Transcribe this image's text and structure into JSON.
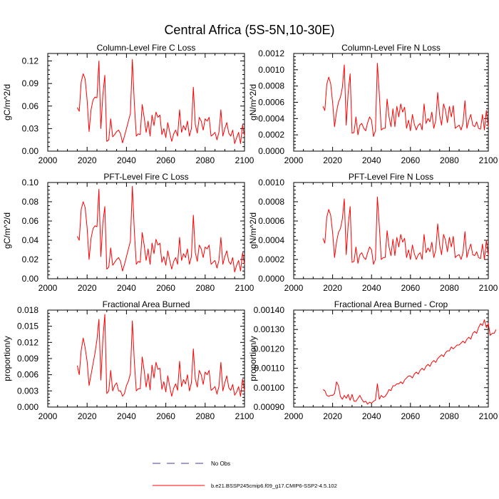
{
  "figure": {
    "title": "Central Africa (5S-5N,10-30E)"
  },
  "legend": [
    {
      "label": "No Obs",
      "color": "#4b3a9e",
      "dash": "dashed"
    },
    {
      "label": "b.e21.BSSP245cmip6.f09_g17.CMIP6-SSP2-4.5.102",
      "color": "#ff0000",
      "dash": "solid"
    }
  ],
  "chart_data": [
    {
      "type": "line",
      "title": "Column-Level Fire C Loss",
      "ylabel": "gC/m^2/d",
      "xlim": [
        2000,
        2100
      ],
      "ylim": [
        0,
        0.13
      ],
      "xticks": [
        "2000",
        "2020",
        "2040",
        "2060",
        "2080",
        "2100"
      ],
      "yticks": [
        [
          "0.00",
          0
        ],
        [
          "0.03",
          0.03
        ],
        [
          "0.06",
          0.06
        ],
        [
          "0.09",
          0.09
        ],
        [
          "0.12",
          0.12
        ]
      ],
      "color": "#ff0000",
      "series": [
        {
          "x_start": 2015,
          "values": [
            0.058,
            0.053,
            0.092,
            0.103,
            0.096,
            0.068,
            0.026,
            0.055,
            0.068,
            0.072,
            0.071,
            0.12,
            0.03,
            0.075,
            0.101,
            0.013,
            0.015,
            0.043,
            0.019,
            0.022,
            0.026,
            0.028,
            0.023,
            0.011,
            0.02,
            0.03,
            0.04,
            0.05,
            0.122,
            0.064,
            0.02,
            0.023,
            0.022,
            0.062,
            0.045,
            0.025,
            0.04,
            0.02,
            0.048,
            0.034,
            0.052,
            0.045,
            0.048,
            0.022,
            0.03,
            0.018,
            0.038,
            0.025,
            0.013,
            0.023,
            0.028,
            0.02,
            0.055,
            0.025,
            0.034,
            0.028,
            0.04,
            0.02,
            0.03,
            0.085,
            0.035,
            0.024,
            0.045,
            0.04,
            0.028,
            0.043,
            0.04,
            0.045,
            0.02,
            0.022,
            0.025,
            0.015,
            0.025,
            0.055,
            0.02,
            0.03,
            0.038,
            0.024,
            0.02,
            0.028,
            0.01,
            0.018,
            0.025,
            0.01,
            0.035,
            0.02
          ]
        }
      ]
    },
    {
      "type": "line",
      "title": "Column-Level Fire N Loss",
      "ylabel": "gN/m^2/d",
      "xlim": [
        2000,
        2100
      ],
      "ylim": [
        0,
        0.0012
      ],
      "xticks": [
        "2000",
        "2020",
        "2040",
        "2060",
        "2080",
        "2100"
      ],
      "yticks": [
        [
          "0.0000",
          0
        ],
        [
          "0.0002",
          0.0002
        ],
        [
          "0.0004",
          0.0004
        ],
        [
          "0.0006",
          0.0006
        ],
        [
          "0.0008",
          0.0008
        ],
        [
          "0.0010",
          0.001
        ],
        [
          "0.0012",
          0.0012
        ]
      ],
      "color": "#ff0000",
      "series": [
        {
          "x_start": 2015,
          "values": [
            0.00055,
            0.0005,
            0.00082,
            0.00091,
            0.00083,
            0.0006,
            0.0003,
            0.00048,
            0.0006,
            0.00066,
            0.00078,
            0.00106,
            0.00032,
            0.00072,
            0.00095,
            0.00022,
            0.00023,
            0.00042,
            0.0002,
            0.00032,
            0.00034,
            0.00028,
            0.00025,
            0.00035,
            0.00042,
            0.00038,
            0.00018,
            0.00025,
            0.00108,
            0.0007,
            0.00026,
            0.00028,
            0.00028,
            0.00064,
            0.00042,
            0.0003,
            0.00052,
            0.0003,
            0.00055,
            0.00042,
            0.00058,
            0.00048,
            0.00054,
            0.00028,
            0.00038,
            0.00025,
            0.00045,
            0.00033,
            0.00026,
            0.00032,
            0.00034,
            0.00026,
            0.00058,
            0.00034,
            0.0004,
            0.00036,
            0.00048,
            0.00028,
            0.00038,
            0.00072,
            0.00044,
            0.00032,
            0.00058,
            0.0005,
            0.00035,
            0.00055,
            0.00042,
            0.00056,
            0.00028,
            0.0003,
            0.00032,
            0.00026,
            0.00034,
            0.00062,
            0.00028,
            0.00038,
            0.00045,
            0.00032,
            0.0003,
            0.00036,
            0.00028,
            0.00027,
            0.00045,
            0.00026,
            0.0005,
            0.0003
          ]
        }
      ]
    },
    {
      "type": "line",
      "title": "PFT-Level Fire C Loss",
      "ylabel": "gC/m^2/d",
      "xlim": [
        2000,
        2100
      ],
      "ylim": [
        0,
        0.1
      ],
      "xticks": [
        "2000",
        "2020",
        "2040",
        "2060",
        "2080",
        "2100"
      ],
      "yticks": [
        [
          "0.00",
          0
        ],
        [
          "0.02",
          0.02
        ],
        [
          "0.04",
          0.04
        ],
        [
          "0.06",
          0.06
        ],
        [
          "0.08",
          0.08
        ],
        [
          "0.10",
          0.1
        ]
      ],
      "color": "#ff0000",
      "series": [
        {
          "x_start": 2015,
          "values": [
            0.044,
            0.04,
            0.072,
            0.08,
            0.074,
            0.053,
            0.02,
            0.042,
            0.052,
            0.055,
            0.054,
            0.093,
            0.023,
            0.058,
            0.075,
            0.01,
            0.012,
            0.032,
            0.014,
            0.017,
            0.02,
            0.022,
            0.018,
            0.008,
            0.015,
            0.023,
            0.031,
            0.039,
            0.096,
            0.05,
            0.015,
            0.018,
            0.017,
            0.048,
            0.035,
            0.019,
            0.031,
            0.015,
            0.037,
            0.026,
            0.041,
            0.035,
            0.037,
            0.017,
            0.023,
            0.014,
            0.029,
            0.019,
            0.01,
            0.018,
            0.022,
            0.015,
            0.043,
            0.019,
            0.026,
            0.022,
            0.031,
            0.015,
            0.023,
            0.066,
            0.027,
            0.018,
            0.035,
            0.031,
            0.022,
            0.033,
            0.031,
            0.035,
            0.015,
            0.017,
            0.019,
            0.011,
            0.019,
            0.043,
            0.015,
            0.023,
            0.029,
            0.018,
            0.015,
            0.022,
            0.007,
            0.014,
            0.019,
            0.008,
            0.027,
            0.015
          ]
        }
      ]
    },
    {
      "type": "line",
      "title": "PFT-Level Fire N Loss",
      "ylabel": "gN/m^2/d",
      "xlim": [
        2000,
        2100
      ],
      "ylim": [
        0,
        0.001
      ],
      "xticks": [
        "2000",
        "2020",
        "2040",
        "2060",
        "2080",
        "2100"
      ],
      "yticks": [
        [
          "0.0000",
          0
        ],
        [
          "0.0002",
          0.0002
        ],
        [
          "0.0004",
          0.0004
        ],
        [
          "0.0006",
          0.0006
        ],
        [
          "0.0008",
          0.0008
        ],
        [
          "0.0010",
          0.001
        ]
      ],
      "color": "#ff0000",
      "series": [
        {
          "x_start": 2015,
          "values": [
            0.00042,
            0.00037,
            0.00064,
            0.00072,
            0.00066,
            0.00048,
            0.00022,
            0.00038,
            0.00048,
            0.00052,
            0.00062,
            0.00083,
            0.00025,
            0.00056,
            0.00075,
            0.00017,
            0.00018,
            0.00033,
            0.00016,
            0.00025,
            0.00027,
            0.00022,
            0.0002,
            0.00027,
            0.00033,
            0.0003,
            0.00015,
            0.0002,
            0.00085,
            0.00055,
            0.0002,
            0.00022,
            0.00022,
            0.0005,
            0.00033,
            0.00024,
            0.00041,
            0.00024,
            0.00043,
            0.00033,
            0.00046,
            0.00038,
            0.00042,
            0.00022,
            0.0003,
            0.0002,
            0.00035,
            0.00026,
            0.0002,
            0.00025,
            0.00027,
            0.0002,
            0.00046,
            0.00027,
            0.00032,
            0.00028,
            0.00038,
            0.00022,
            0.0003,
            0.00057,
            0.00035,
            0.00025,
            0.00046,
            0.0004,
            0.00028,
            0.00043,
            0.00033,
            0.00044,
            0.00022,
            0.00024,
            0.00025,
            0.0002,
            0.00027,
            0.00049,
            0.00022,
            0.0003,
            0.00036,
            0.00025,
            0.00024,
            0.00028,
            0.00022,
            0.00021,
            0.00036,
            0.0002,
            0.0004,
            0.00024
          ]
        }
      ]
    },
    {
      "type": "line",
      "title": "Fractional Area Burned",
      "ylabel": "proportion/y",
      "xlim": [
        2000,
        2100
      ],
      "ylim": [
        0,
        0.018
      ],
      "xticks": [
        "2000",
        "2020",
        "2040",
        "2060",
        "2080",
        "2100"
      ],
      "yticks": [
        [
          "0.000",
          0
        ],
        [
          "0.003",
          0.003
        ],
        [
          "0.006",
          0.006
        ],
        [
          "0.009",
          0.009
        ],
        [
          "0.012",
          0.012
        ],
        [
          "0.015",
          0.015
        ],
        [
          "0.018",
          0.018
        ]
      ],
      "color": "#ff0000",
      "series": [
        {
          "x_start": 2015,
          "values": [
            0.0077,
            0.006,
            0.0105,
            0.0128,
            0.011,
            0.0085,
            0.004,
            0.006,
            0.008,
            0.01,
            0.0125,
            0.0163,
            0.005,
            0.0125,
            0.0172,
            0.0025,
            0.003,
            0.0068,
            0.003,
            0.004,
            0.0045,
            0.003,
            0.003,
            0.002,
            0.0025,
            0.004,
            0.0048,
            0.0062,
            0.016,
            0.0085,
            0.003,
            0.0034,
            0.0034,
            0.0093,
            0.0068,
            0.0037,
            0.0062,
            0.0032,
            0.0078,
            0.0054,
            0.0083,
            0.007,
            0.0072,
            0.0033,
            0.0047,
            0.0028,
            0.0058,
            0.0038,
            0.002,
            0.0035,
            0.0043,
            0.0031,
            0.0085,
            0.0038,
            0.0051,
            0.0043,
            0.006,
            0.003,
            0.0045,
            0.0108,
            0.0052,
            0.0037,
            0.0068,
            0.006,
            0.0042,
            0.0065,
            0.006,
            0.0068,
            0.0031,
            0.0034,
            0.0038,
            0.0024,
            0.0038,
            0.0083,
            0.003,
            0.0045,
            0.0058,
            0.0036,
            0.0031,
            0.0042,
            0.0022,
            0.0028,
            0.0038,
            0.002,
            0.0052,
            0.003
          ]
        }
      ]
    },
    {
      "type": "line",
      "title": "Fractional Area Burned - Crop",
      "ylabel": "proportion/y",
      "xlim": [
        2000,
        2100
      ],
      "ylim": [
        0.0009,
        0.0014
      ],
      "xticks": [
        "2000",
        "2020",
        "2040",
        "2060",
        "2080",
        "2100"
      ],
      "yticks": [
        [
          "0.00090",
          0.0009
        ],
        [
          "0.00100",
          0.001
        ],
        [
          "0.00110",
          0.0011
        ],
        [
          "0.00120",
          0.0012
        ],
        [
          "0.00130",
          0.0013
        ],
        [
          "0.00140",
          0.0014
        ]
      ],
      "color": "#ff0000",
      "series": [
        {
          "x_start": 2015,
          "values": [
            0.00099,
            0.000985,
            0.00096,
            0.000955,
            0.00096,
            0.00096,
            0.00097,
            0.00103,
            0.00101,
            0.000955,
            0.00094,
            0.00096,
            0.000945,
            0.000965,
            0.000935,
            0.000965,
            0.00093,
            0.00093,
            0.000945,
            0.00096,
            0.00094,
            0.000925,
            0.00093,
            0.000915,
            0.000925,
            0.00092,
            0.00093,
            0.000935,
            0.00102,
            0.00094,
            0.00096,
            0.00095,
            0.000955,
            0.00097,
            0.00099,
            0.000985,
            0.00101,
            0.00101,
            0.00102,
            0.00102,
            0.00103,
            0.00102,
            0.00104,
            0.00105,
            0.00106,
            0.00106,
            0.00105,
            0.00107,
            0.00108,
            0.00107,
            0.00109,
            0.0011,
            0.00109,
            0.00111,
            0.00112,
            0.00111,
            0.00113,
            0.00114,
            0.00113,
            0.00115,
            0.00116,
            0.00117,
            0.00116,
            0.00118,
            0.00119,
            0.00119,
            0.00121,
            0.0012,
            0.00121,
            0.00122,
            0.00122,
            0.00123,
            0.00124,
            0.00123,
            0.00125,
            0.00126,
            0.00125,
            0.00128,
            0.00129,
            0.00128,
            0.00131,
            0.00133,
            0.00132,
            0.00135,
            0.00131,
            0.00133,
            0.00127,
            0.00128,
            0.00128,
            0.0013
          ]
        }
      ]
    }
  ]
}
